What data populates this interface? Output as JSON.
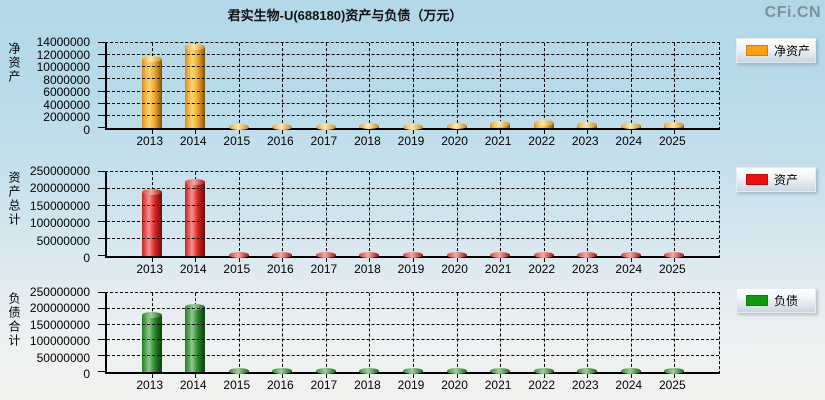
{
  "page": {
    "title": "君实生物-U(688180)资产与负债（万元）",
    "watermark": "CFi.CN"
  },
  "chart_data": [
    {
      "type": "bar",
      "id": "net-assets",
      "ylabel": "净资产",
      "legend": "净资产",
      "legend_color": "#FFA013",
      "bar_color": "#F5B33C",
      "legend_position": "right",
      "grid": true,
      "categories": [
        "2013",
        "2014",
        "2015",
        "2016",
        "2017",
        "2018",
        "2019",
        "2020",
        "2021",
        "2022",
        "2023",
        "2024",
        "2025"
      ],
      "values": [
        11300000,
        13300000,
        80000,
        120000,
        100000,
        280000,
        150000,
        320000,
        670000,
        820000,
        500000,
        400000,
        550000
      ],
      "ylim": [
        0,
        14000000
      ],
      "yticks": [
        0,
        2000000,
        4000000,
        6000000,
        8000000,
        10000000,
        12000000,
        14000000
      ]
    },
    {
      "type": "bar",
      "id": "total-assets",
      "ylabel": "资产总计",
      "legend": "资产",
      "legend_color": "#EE0F0F",
      "bar_color": "#E02828",
      "legend_position": "right",
      "grid": true,
      "categories": [
        "2013",
        "2014",
        "2015",
        "2016",
        "2017",
        "2018",
        "2019",
        "2020",
        "2021",
        "2022",
        "2023",
        "2024",
        "2025"
      ],
      "values": [
        190000000,
        220000000,
        1500000,
        1800000,
        1600000,
        2200000,
        2000000,
        2400000,
        3000000,
        3200000,
        2600000,
        2200000,
        2600000
      ],
      "ylim": [
        0,
        250000000
      ],
      "yticks": [
        0,
        50000000,
        100000000,
        150000000,
        200000000,
        250000000
      ]
    },
    {
      "type": "bar",
      "id": "total-liabilities",
      "ylabel": "负债合计",
      "legend": "负债",
      "legend_color": "#0E9A0E",
      "bar_color": "#2E8C2E",
      "legend_position": "right",
      "grid": true,
      "categories": [
        "2013",
        "2014",
        "2015",
        "2016",
        "2017",
        "2018",
        "2019",
        "2020",
        "2021",
        "2022",
        "2023",
        "2024",
        "2025"
      ],
      "values": [
        180000000,
        207000000,
        1200000,
        1500000,
        1300000,
        1800000,
        1600000,
        2000000,
        2400000,
        2600000,
        2100000,
        1800000,
        2100000
      ],
      "ylim": [
        0,
        250000000
      ],
      "yticks": [
        0,
        50000000,
        100000000,
        150000000,
        200000000,
        250000000
      ]
    }
  ]
}
